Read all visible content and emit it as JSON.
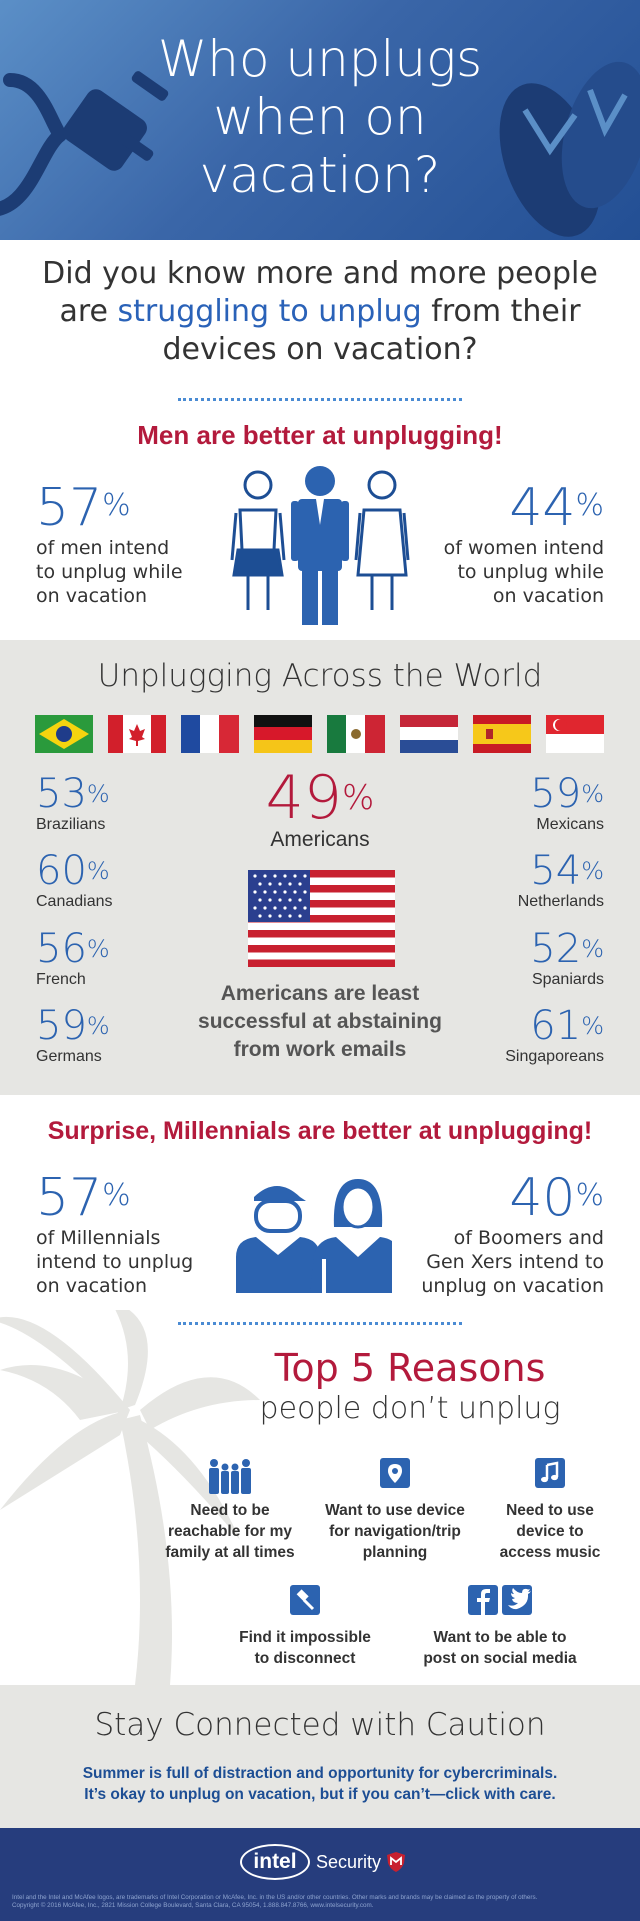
{
  "header": {
    "title_lines": [
      "Who unplugs",
      "when on",
      "vacation?"
    ]
  },
  "intro": {
    "line1": "Did you know more and more people",
    "line2_pre": "are ",
    "line2_highlight": "struggling to unplug",
    "line2_post": " from their",
    "line3": "devices on vacation?"
  },
  "gender": {
    "heading": "Men are better at unplugging!",
    "men": {
      "value": "57",
      "unit": "%",
      "text": [
        "of men intend",
        "to unplug while",
        "on vacation"
      ]
    },
    "women": {
      "value": "44",
      "unit": "%",
      "text": [
        "of women intend",
        "to unplug while",
        "on vacation"
      ]
    }
  },
  "world": {
    "heading": "Unplugging Across the World",
    "flags": [
      "Brazil",
      "Canada",
      "France",
      "Germany",
      "Mexico",
      "Netherlands",
      "Spain",
      "Singapore"
    ],
    "left": [
      {
        "value": "53",
        "unit": "%",
        "label": "Brazilians"
      },
      {
        "value": "60",
        "unit": "%",
        "label": "Canadians"
      },
      {
        "value": "56",
        "unit": "%",
        "label": "French"
      },
      {
        "value": "59",
        "unit": "%",
        "label": "Germans"
      }
    ],
    "right": [
      {
        "value": "59",
        "unit": "%",
        "label": "Mexicans"
      },
      {
        "value": "54",
        "unit": "%",
        "label": "Netherlands"
      },
      {
        "value": "52",
        "unit": "%",
        "label": "Spaniards"
      },
      {
        "value": "61",
        "unit": "%",
        "label": "Singaporeans"
      }
    ],
    "us": {
      "value": "49",
      "unit": "%",
      "label": "Americans"
    },
    "us_note": [
      "Americans are least",
      "successful at abstaining",
      "from work emails"
    ]
  },
  "generations": {
    "heading": "Surprise, Millennials are better at unplugging!",
    "millennials": {
      "value": "57",
      "unit": "%",
      "text": [
        "of Millennials",
        "intend to unplug",
        "on vacation"
      ]
    },
    "boomers": {
      "value": "40",
      "unit": "%",
      "text": [
        "of Boomers and",
        "Gen Xers intend to",
        "unplug on vacation"
      ]
    }
  },
  "reasons": {
    "title": "Top 5 Reasons",
    "subtitle": "people don’t unplug",
    "items": [
      {
        "icon": "family-icon",
        "lines": [
          "Need to be",
          "reachable for my",
          "family at all times"
        ]
      },
      {
        "icon": "map-pin-icon",
        "lines": [
          "Want to use device",
          "for navigation/trip",
          "planning"
        ]
      },
      {
        "icon": "music-note-icon",
        "lines": [
          "Need to use",
          "device to",
          "access music"
        ]
      },
      {
        "icon": "impossible-icon",
        "lines": [
          "Find it impossible",
          "to disconnect"
        ]
      },
      {
        "icon": "social-media-icon",
        "lines": [
          "Want to be able to",
          "post on social media"
        ]
      }
    ]
  },
  "caution": {
    "title": "Stay Connected with Caution",
    "body": [
      "Summer is full of distraction and opportunity for cybercriminals.",
      "It’s okay to unplug on vacation, but if you can’t—click with care."
    ]
  },
  "footer": {
    "logo_main": "intel",
    "logo_sub": "Security",
    "legal": [
      "Intel and the Intel and McAfee logos, are trademarks of Intel Corporation or McAfee, Inc. in the US and/or other countries. Other marks and brands may be claimed as the property of others.",
      "Copyright © 2016 McAfee, Inc., 2821 Mission College Boulevard, Santa Clara, CA 95054, 1.888.847.8766, www.intelsecurity.com."
    ]
  },
  "colors": {
    "blue": "#2c63b0",
    "red": "#b31a3c",
    "gray_band": "#e6e6e3",
    "footer": "#263d7d"
  }
}
